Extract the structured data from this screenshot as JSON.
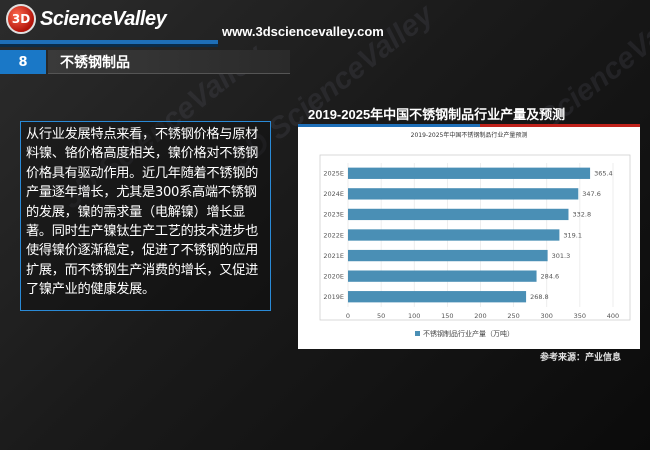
{
  "brand": {
    "logo_mark": "3D",
    "logo_text": "ScienceValley",
    "url": "www.3dsciencevalley.com"
  },
  "section": {
    "number": "8",
    "title": "不锈钢制品"
  },
  "body_text": "从行业发展特点来看，不锈钢价格与原材料镍、铬价格高度相关，镍价格对不锈钢价格具有驱动作用。近几年随着不锈钢的产量逐年增长，尤其是300系高端不锈钢的发展，镍的需求量（电解镍）增长显著。同时生产镍钛生产工艺的技术进步也使得镍价逐渐稳定，促进了不锈钢的应用扩展，而不锈钢生产消费的增长，又促进了镍产业的健康发展。",
  "chart_heading": "2019-2025年中国不锈钢制品行业产量及预测",
  "source_note": "参考来源：产业信息",
  "colors": {
    "accent_blue": "#1a78c7",
    "accent_red": "#c0221b",
    "bar": "#4a8fb5"
  },
  "chart_data": {
    "type": "bar",
    "orientation": "horizontal",
    "title": "2019-2025年中国不锈钢制品行业产量预测",
    "categories": [
      "2025E",
      "2024E",
      "2023E",
      "2022E",
      "2021E",
      "2020E",
      "2019E"
    ],
    "values": [
      365.4,
      347.6,
      332.8,
      319.1,
      301.3,
      284.6,
      268.8
    ],
    "x_ticks": [
      0,
      50,
      100,
      150,
      200,
      250,
      300,
      350,
      400
    ],
    "xlim": [
      0,
      400
    ],
    "legend": "不锈钢制品行业产量（万吨）",
    "legend_position": "bottom",
    "grid": true
  }
}
